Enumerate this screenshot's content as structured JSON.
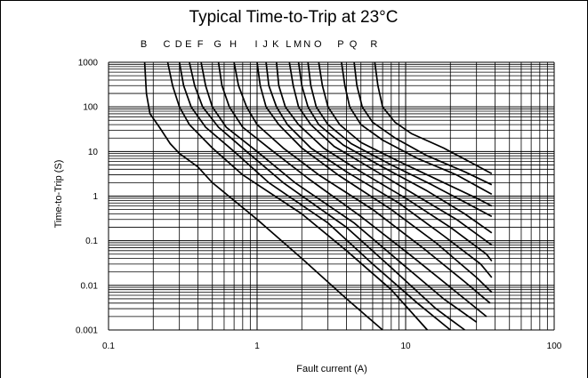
{
  "chart_data": {
    "type": "line",
    "title": "Typical Time-to-Trip at 23°C",
    "xlabel": "Fault current (A)",
    "ylabel": "Time-to-Trip (S)",
    "xscale": "log",
    "yscale": "log",
    "xlim": [
      0.1,
      100
    ],
    "ylim": [
      0.001,
      1000
    ],
    "grid": true,
    "x_ticks": [
      "0.1",
      "1",
      "10",
      "100"
    ],
    "y_ticks": [
      "1000",
      "100",
      "10",
      "1",
      "0.1",
      "0.01",
      "0.001"
    ],
    "series": [
      {
        "name": "B",
        "points": [
          [
            0.175,
            1000
          ],
          [
            0.18,
            200
          ],
          [
            0.19,
            70
          ],
          [
            0.22,
            35
          ],
          [
            0.26,
            15
          ],
          [
            0.3,
            9
          ],
          [
            0.4,
            4.5
          ],
          [
            0.5,
            2
          ],
          [
            1,
            0.3
          ],
          [
            2,
            0.04
          ],
          [
            4,
            0.005
          ],
          [
            7,
            0.001
          ]
        ]
      },
      {
        "name": "C",
        "points": [
          [
            0.25,
            1000
          ],
          [
            0.27,
            300
          ],
          [
            0.3,
            100
          ],
          [
            0.35,
            40
          ],
          [
            0.5,
            12
          ],
          [
            0.8,
            3
          ],
          [
            2,
            0.4
          ],
          [
            4,
            0.06
          ],
          [
            8,
            0.008
          ],
          [
            14,
            0.001
          ]
        ]
      },
      {
        "name": "D",
        "points": [
          [
            0.3,
            1000
          ],
          [
            0.32,
            300
          ],
          [
            0.36,
            100
          ],
          [
            0.45,
            35
          ],
          [
            0.7,
            10
          ],
          [
            1.2,
            2
          ],
          [
            3,
            0.25
          ],
          [
            6,
            0.03
          ],
          [
            12,
            0.004
          ],
          [
            20,
            0.001
          ]
        ]
      },
      {
        "name": "E",
        "points": [
          [
            0.35,
            1000
          ],
          [
            0.38,
            300
          ],
          [
            0.43,
            100
          ],
          [
            0.55,
            35
          ],
          [
            0.85,
            10
          ],
          [
            1.5,
            2
          ],
          [
            4,
            0.2
          ],
          [
            8,
            0.025
          ],
          [
            16,
            0.003
          ],
          [
            25,
            0.001
          ]
        ]
      },
      {
        "name": "F",
        "points": [
          [
            0.42,
            1000
          ],
          [
            0.45,
            300
          ],
          [
            0.5,
            100
          ],
          [
            0.62,
            35
          ],
          [
            1,
            10
          ],
          [
            1.8,
            2
          ],
          [
            4.5,
            0.25
          ],
          [
            9,
            0.035
          ],
          [
            18,
            0.005
          ],
          [
            30,
            0.0015
          ]
        ]
      },
      {
        "name": "G",
        "points": [
          [
            0.55,
            1000
          ],
          [
            0.58,
            300
          ],
          [
            0.65,
            100
          ],
          [
            0.8,
            35
          ],
          [
            1.2,
            12
          ],
          [
            2.2,
            2.5
          ],
          [
            5,
            0.35
          ],
          [
            11,
            0.045
          ],
          [
            22,
            0.007
          ],
          [
            35,
            0.002
          ]
        ]
      },
      {
        "name": "H",
        "points": [
          [
            0.7,
            1000
          ],
          [
            0.75,
            300
          ],
          [
            0.85,
            100
          ],
          [
            1,
            40
          ],
          [
            1.5,
            12
          ],
          [
            2.6,
            3
          ],
          [
            6,
            0.5
          ],
          [
            13,
            0.07
          ],
          [
            25,
            0.012
          ],
          [
            37,
            0.004
          ]
        ]
      },
      {
        "name": "I",
        "points": [
          [
            1,
            1000
          ],
          [
            1.05,
            300
          ],
          [
            1.15,
            100
          ],
          [
            1.4,
            40
          ],
          [
            2,
            12
          ],
          [
            3.5,
            3
          ],
          [
            8,
            0.5
          ],
          [
            16,
            0.09
          ],
          [
            30,
            0.015
          ],
          [
            38,
            0.007
          ]
        ]
      },
      {
        "name": "J",
        "points": [
          [
            1.15,
            1000
          ],
          [
            1.2,
            300
          ],
          [
            1.35,
            100
          ],
          [
            1.6,
            40
          ],
          [
            2.3,
            12
          ],
          [
            4,
            3.5
          ],
          [
            9,
            0.7
          ],
          [
            18,
            0.13
          ],
          [
            32,
            0.03
          ],
          [
            38,
            0.015
          ]
        ]
      },
      {
        "name": "K",
        "points": [
          [
            1.35,
            1000
          ],
          [
            1.4,
            300
          ],
          [
            1.55,
            100
          ],
          [
            1.9,
            40
          ],
          [
            2.8,
            12
          ],
          [
            5,
            3.5
          ],
          [
            10,
            0.9
          ],
          [
            20,
            0.2
          ],
          [
            35,
            0.05
          ],
          [
            38,
            0.035
          ]
        ]
      },
      {
        "name": "L",
        "points": [
          [
            1.65,
            1000
          ],
          [
            1.75,
            300
          ],
          [
            1.9,
            100
          ],
          [
            2.3,
            40
          ],
          [
            3.3,
            13
          ],
          [
            6,
            4
          ],
          [
            12,
            1
          ],
          [
            22,
            0.3
          ],
          [
            38,
            0.08
          ]
        ]
      },
      {
        "name": "M",
        "points": [
          [
            1.9,
            1000
          ],
          [
            2,
            300
          ],
          [
            2.2,
            100
          ],
          [
            2.6,
            40
          ],
          [
            3.8,
            14
          ],
          [
            7,
            4.5
          ],
          [
            14,
            1.3
          ],
          [
            25,
            0.4
          ],
          [
            38,
            0.15
          ]
        ]
      },
      {
        "name": "N",
        "points": [
          [
            2.2,
            1000
          ],
          [
            2.3,
            300
          ],
          [
            2.5,
            100
          ],
          [
            3,
            40
          ],
          [
            4.3,
            15
          ],
          [
            8,
            5
          ],
          [
            15,
            1.8
          ],
          [
            28,
            0.6
          ],
          [
            38,
            0.35
          ]
        ]
      },
      {
        "name": "O",
        "points": [
          [
            2.6,
            1000
          ],
          [
            2.75,
            300
          ],
          [
            3,
            100
          ],
          [
            3.6,
            40
          ],
          [
            5,
            16
          ],
          [
            9,
            6
          ],
          [
            17,
            2.2
          ],
          [
            30,
            0.9
          ],
          [
            38,
            0.6
          ]
        ]
      },
      {
        "name": "P",
        "points": [
          [
            3.7,
            1000
          ],
          [
            3.9,
            300
          ],
          [
            4.2,
            100
          ],
          [
            5,
            40
          ],
          [
            7,
            18
          ],
          [
            12,
            7
          ],
          [
            22,
            3
          ],
          [
            38,
            1.1
          ]
        ]
      },
      {
        "name": "Q",
        "points": [
          [
            4.5,
            1000
          ],
          [
            4.7,
            300
          ],
          [
            5.1,
            100
          ],
          [
            6,
            45
          ],
          [
            8.5,
            20
          ],
          [
            14,
            8
          ],
          [
            25,
            3.5
          ],
          [
            38,
            1.8
          ]
        ]
      },
      {
        "name": "R",
        "points": [
          [
            6.2,
            1000
          ],
          [
            6.5,
            300
          ],
          [
            7,
            100
          ],
          [
            8.5,
            45
          ],
          [
            11,
            25
          ],
          [
            18,
            12
          ],
          [
            28,
            5.5
          ],
          [
            38,
            3.2
          ]
        ]
      }
    ],
    "legend": "curve letters above plot"
  }
}
